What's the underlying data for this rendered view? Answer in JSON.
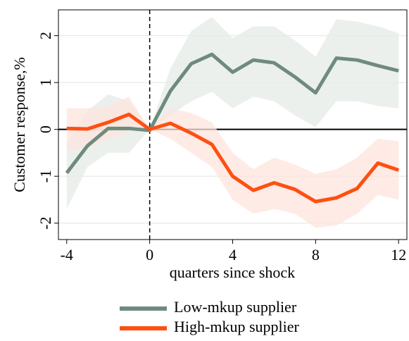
{
  "chart_data": {
    "type": "line",
    "x_label": "quarters since shock",
    "y_label": "Customer response,%",
    "x": [
      -4,
      -3,
      -2,
      -1,
      0,
      1,
      2,
      3,
      4,
      5,
      6,
      7,
      8,
      9,
      10,
      11,
      12
    ],
    "xlim": [
      -4.4,
      12.4
    ],
    "xticks": [
      -4,
      0,
      4,
      8,
      12
    ],
    "ylim": [
      -2.35,
      2.55
    ],
    "yticks": [
      -2,
      -1,
      0,
      1,
      2
    ],
    "grid": true,
    "series": [
      {
        "name": "Low-mkup supplier",
        "color": "#6e8b7e",
        "band_color": "#e6ebe7",
        "values": [
          -0.93,
          -0.35,
          0.02,
          0.02,
          -0.02,
          0.82,
          1.4,
          1.6,
          1.22,
          1.48,
          1.42,
          1.12,
          0.78,
          1.52,
          1.48,
          1.36,
          1.25
        ],
        "lower": [
          -1.7,
          -0.8,
          -0.5,
          -0.5,
          0,
          0.3,
          0.6,
          0.8,
          0.45,
          0.7,
          0.6,
          0.3,
          0.05,
          0.6,
          0.6,
          0.5,
          0.45
        ],
        "upper": [
          -0.3,
          0.4,
          0.75,
          0.6,
          0,
          1.3,
          2.1,
          2.4,
          1.95,
          2.2,
          2.2,
          1.9,
          1.55,
          2.35,
          2.3,
          2.2,
          2.05
        ]
      },
      {
        "name": "High-mkup supplier",
        "color": "#ff4f12",
        "band_color": "#fde4dc",
        "values": [
          0.02,
          0.01,
          0.15,
          0.32,
          0.0,
          0.13,
          -0.08,
          -0.32,
          -1.0,
          -1.3,
          -1.14,
          -1.28,
          -1.54,
          -1.46,
          -1.26,
          -0.72,
          -0.87
        ],
        "lower": [
          -0.45,
          -0.4,
          -0.2,
          -0.05,
          0,
          -0.2,
          -0.5,
          -0.8,
          -1.5,
          -1.8,
          -1.7,
          -1.8,
          -2.1,
          -2.05,
          -1.8,
          -1.4,
          -1.5
        ],
        "upper": [
          0.45,
          0.45,
          0.5,
          0.7,
          0,
          0.45,
          0.35,
          0.15,
          -0.5,
          -0.85,
          -0.6,
          -0.75,
          -0.95,
          -0.85,
          -0.6,
          -0.2,
          -0.25
        ]
      }
    ]
  }
}
